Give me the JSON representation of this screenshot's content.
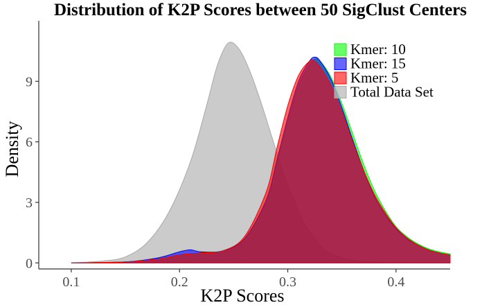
{
  "chart_data": {
    "type": "area",
    "title": "Distribution of K2P Scores between 50 SigClust Centers",
    "xlabel": "K2P Scores",
    "ylabel": "Density",
    "xlim": [
      0.07,
      0.45
    ],
    "ylim": [
      -0.3,
      12.0
    ],
    "x_ticks": [
      0.1,
      0.2,
      0.3,
      0.4
    ],
    "x_tick_labels": [
      "0.1",
      "0.2",
      "0.3",
      "0.4"
    ],
    "y_ticks": [
      0,
      3,
      6,
      9
    ],
    "y_tick_labels": [
      "0",
      "3",
      "6",
      "9"
    ],
    "grid": false,
    "legend_position": "top-right",
    "series": [
      {
        "name": "Total Data Set",
        "color": "#bdbdbd",
        "points": [
          [
            0.1,
            0.0
          ],
          [
            0.13,
            0.1
          ],
          [
            0.15,
            0.3
          ],
          [
            0.17,
            1.0
          ],
          [
            0.19,
            2.5
          ],
          [
            0.21,
            5.0
          ],
          [
            0.225,
            7.8
          ],
          [
            0.235,
            9.8
          ],
          [
            0.245,
            10.9
          ],
          [
            0.255,
            10.6
          ],
          [
            0.265,
            9.5
          ],
          [
            0.275,
            8.0
          ],
          [
            0.285,
            6.3
          ],
          [
            0.295,
            4.6
          ],
          [
            0.305,
            3.2
          ],
          [
            0.315,
            2.0
          ],
          [
            0.325,
            1.2
          ],
          [
            0.335,
            0.6
          ],
          [
            0.35,
            0.25
          ],
          [
            0.37,
            0.08
          ],
          [
            0.4,
            0.02
          ],
          [
            0.45,
            0.0
          ]
        ]
      },
      {
        "name": "Kmer: 10",
        "color": "#00ff00",
        "points": [
          [
            0.1,
            0.0
          ],
          [
            0.15,
            0.05
          ],
          [
            0.18,
            0.2
          ],
          [
            0.2,
            0.4
          ],
          [
            0.22,
            0.5
          ],
          [
            0.24,
            0.6
          ],
          [
            0.26,
            1.2
          ],
          [
            0.28,
            3.0
          ],
          [
            0.29,
            5.0
          ],
          [
            0.3,
            7.0
          ],
          [
            0.31,
            8.8
          ],
          [
            0.32,
            9.8
          ],
          [
            0.325,
            10.1
          ],
          [
            0.33,
            10.0
          ],
          [
            0.34,
            9.2
          ],
          [
            0.35,
            7.9
          ],
          [
            0.36,
            6.4
          ],
          [
            0.37,
            4.9
          ],
          [
            0.38,
            3.6
          ],
          [
            0.39,
            2.6
          ],
          [
            0.4,
            1.8
          ],
          [
            0.41,
            1.3
          ],
          [
            0.42,
            0.95
          ],
          [
            0.43,
            0.7
          ],
          [
            0.44,
            0.55
          ],
          [
            0.45,
            0.45
          ]
        ]
      },
      {
        "name": "Kmer: 15",
        "color": "#0000ff",
        "points": [
          [
            0.1,
            0.0
          ],
          [
            0.15,
            0.05
          ],
          [
            0.18,
            0.25
          ],
          [
            0.2,
            0.55
          ],
          [
            0.21,
            0.65
          ],
          [
            0.22,
            0.55
          ],
          [
            0.24,
            0.6
          ],
          [
            0.26,
            1.2
          ],
          [
            0.28,
            3.1
          ],
          [
            0.29,
            5.1
          ],
          [
            0.3,
            7.2
          ],
          [
            0.31,
            9.0
          ],
          [
            0.32,
            10.0
          ],
          [
            0.325,
            10.2
          ],
          [
            0.33,
            10.0
          ],
          [
            0.34,
            9.1
          ],
          [
            0.35,
            7.7
          ],
          [
            0.36,
            6.1
          ],
          [
            0.37,
            4.6
          ],
          [
            0.38,
            3.3
          ],
          [
            0.39,
            2.4
          ],
          [
            0.4,
            1.7
          ],
          [
            0.41,
            1.2
          ],
          [
            0.42,
            0.9
          ],
          [
            0.43,
            0.65
          ],
          [
            0.44,
            0.5
          ],
          [
            0.45,
            0.4
          ]
        ]
      },
      {
        "name": "Kmer: 5",
        "color": "#ff0000",
        "points": [
          [
            0.1,
            0.0
          ],
          [
            0.15,
            0.05
          ],
          [
            0.18,
            0.2
          ],
          [
            0.2,
            0.4
          ],
          [
            0.22,
            0.5
          ],
          [
            0.24,
            0.6
          ],
          [
            0.26,
            1.3
          ],
          [
            0.28,
            3.5
          ],
          [
            0.29,
            5.7
          ],
          [
            0.3,
            7.8
          ],
          [
            0.31,
            9.3
          ],
          [
            0.32,
            10.0
          ],
          [
            0.325,
            10.0
          ],
          [
            0.33,
            9.7
          ],
          [
            0.34,
            8.8
          ],
          [
            0.35,
            7.5
          ],
          [
            0.36,
            6.0
          ],
          [
            0.37,
            4.6
          ],
          [
            0.38,
            3.4
          ],
          [
            0.39,
            2.5
          ],
          [
            0.4,
            1.75
          ],
          [
            0.41,
            1.25
          ],
          [
            0.42,
            0.9
          ],
          [
            0.43,
            0.65
          ],
          [
            0.44,
            0.5
          ],
          [
            0.45,
            0.4
          ]
        ]
      }
    ],
    "legend_order": [
      "Kmer: 10",
      "Kmer: 15",
      "Kmer: 5",
      "Total Data Set"
    ]
  }
}
